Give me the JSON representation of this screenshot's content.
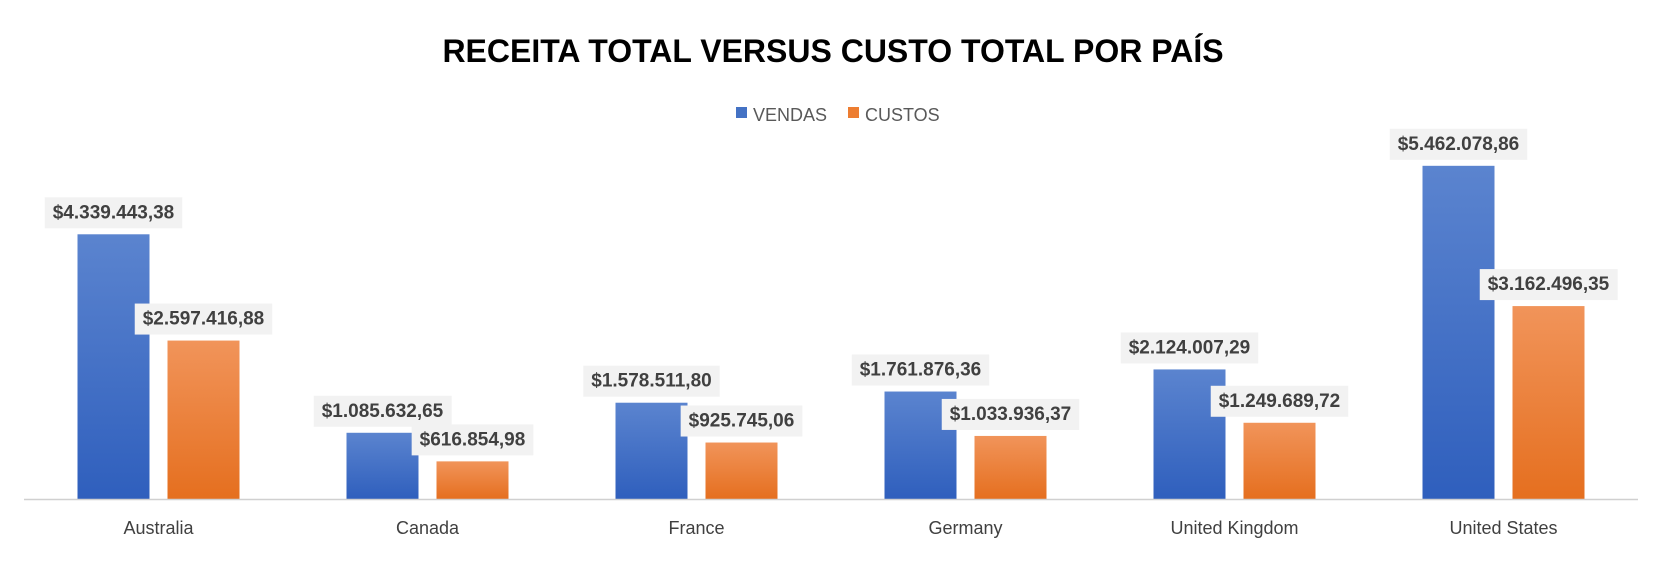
{
  "chart_data": {
    "type": "bar",
    "title": "RECEITA TOTAL VERSUS CUSTO TOTAL POR PAÍS",
    "xlabel": "",
    "ylabel": "",
    "ylim": [
      0,
      6000000
    ],
    "grid": false,
    "legend_position": "top",
    "categories": [
      "Australia",
      "Canada",
      "France",
      "Germany",
      "United Kingdom",
      "United States"
    ],
    "series": [
      {
        "name": "VENDAS",
        "color": "#4472c4",
        "values": [
          4339443.38,
          1085632.65,
          1578511.8,
          1761876.36,
          2124007.29,
          5462078.86
        ],
        "labels": [
          "$4.339.443,38",
          "$1.085.632,65",
          "$1.578.511,80",
          "$1.761.876,36",
          "$2.124.007,29",
          "$5.462.078,86"
        ]
      },
      {
        "name": "CUSTOS",
        "color": "#ed7d31",
        "values": [
          2597416.88,
          616854.98,
          925745.06,
          1033936.37,
          1249689.72,
          3162496.35
        ],
        "labels": [
          "$2.597.416,88",
          "$616.854,98",
          "$925.745,06",
          "$1.033.936,37",
          "$1.249.689,72",
          "$3.162.496,35"
        ]
      }
    ]
  }
}
